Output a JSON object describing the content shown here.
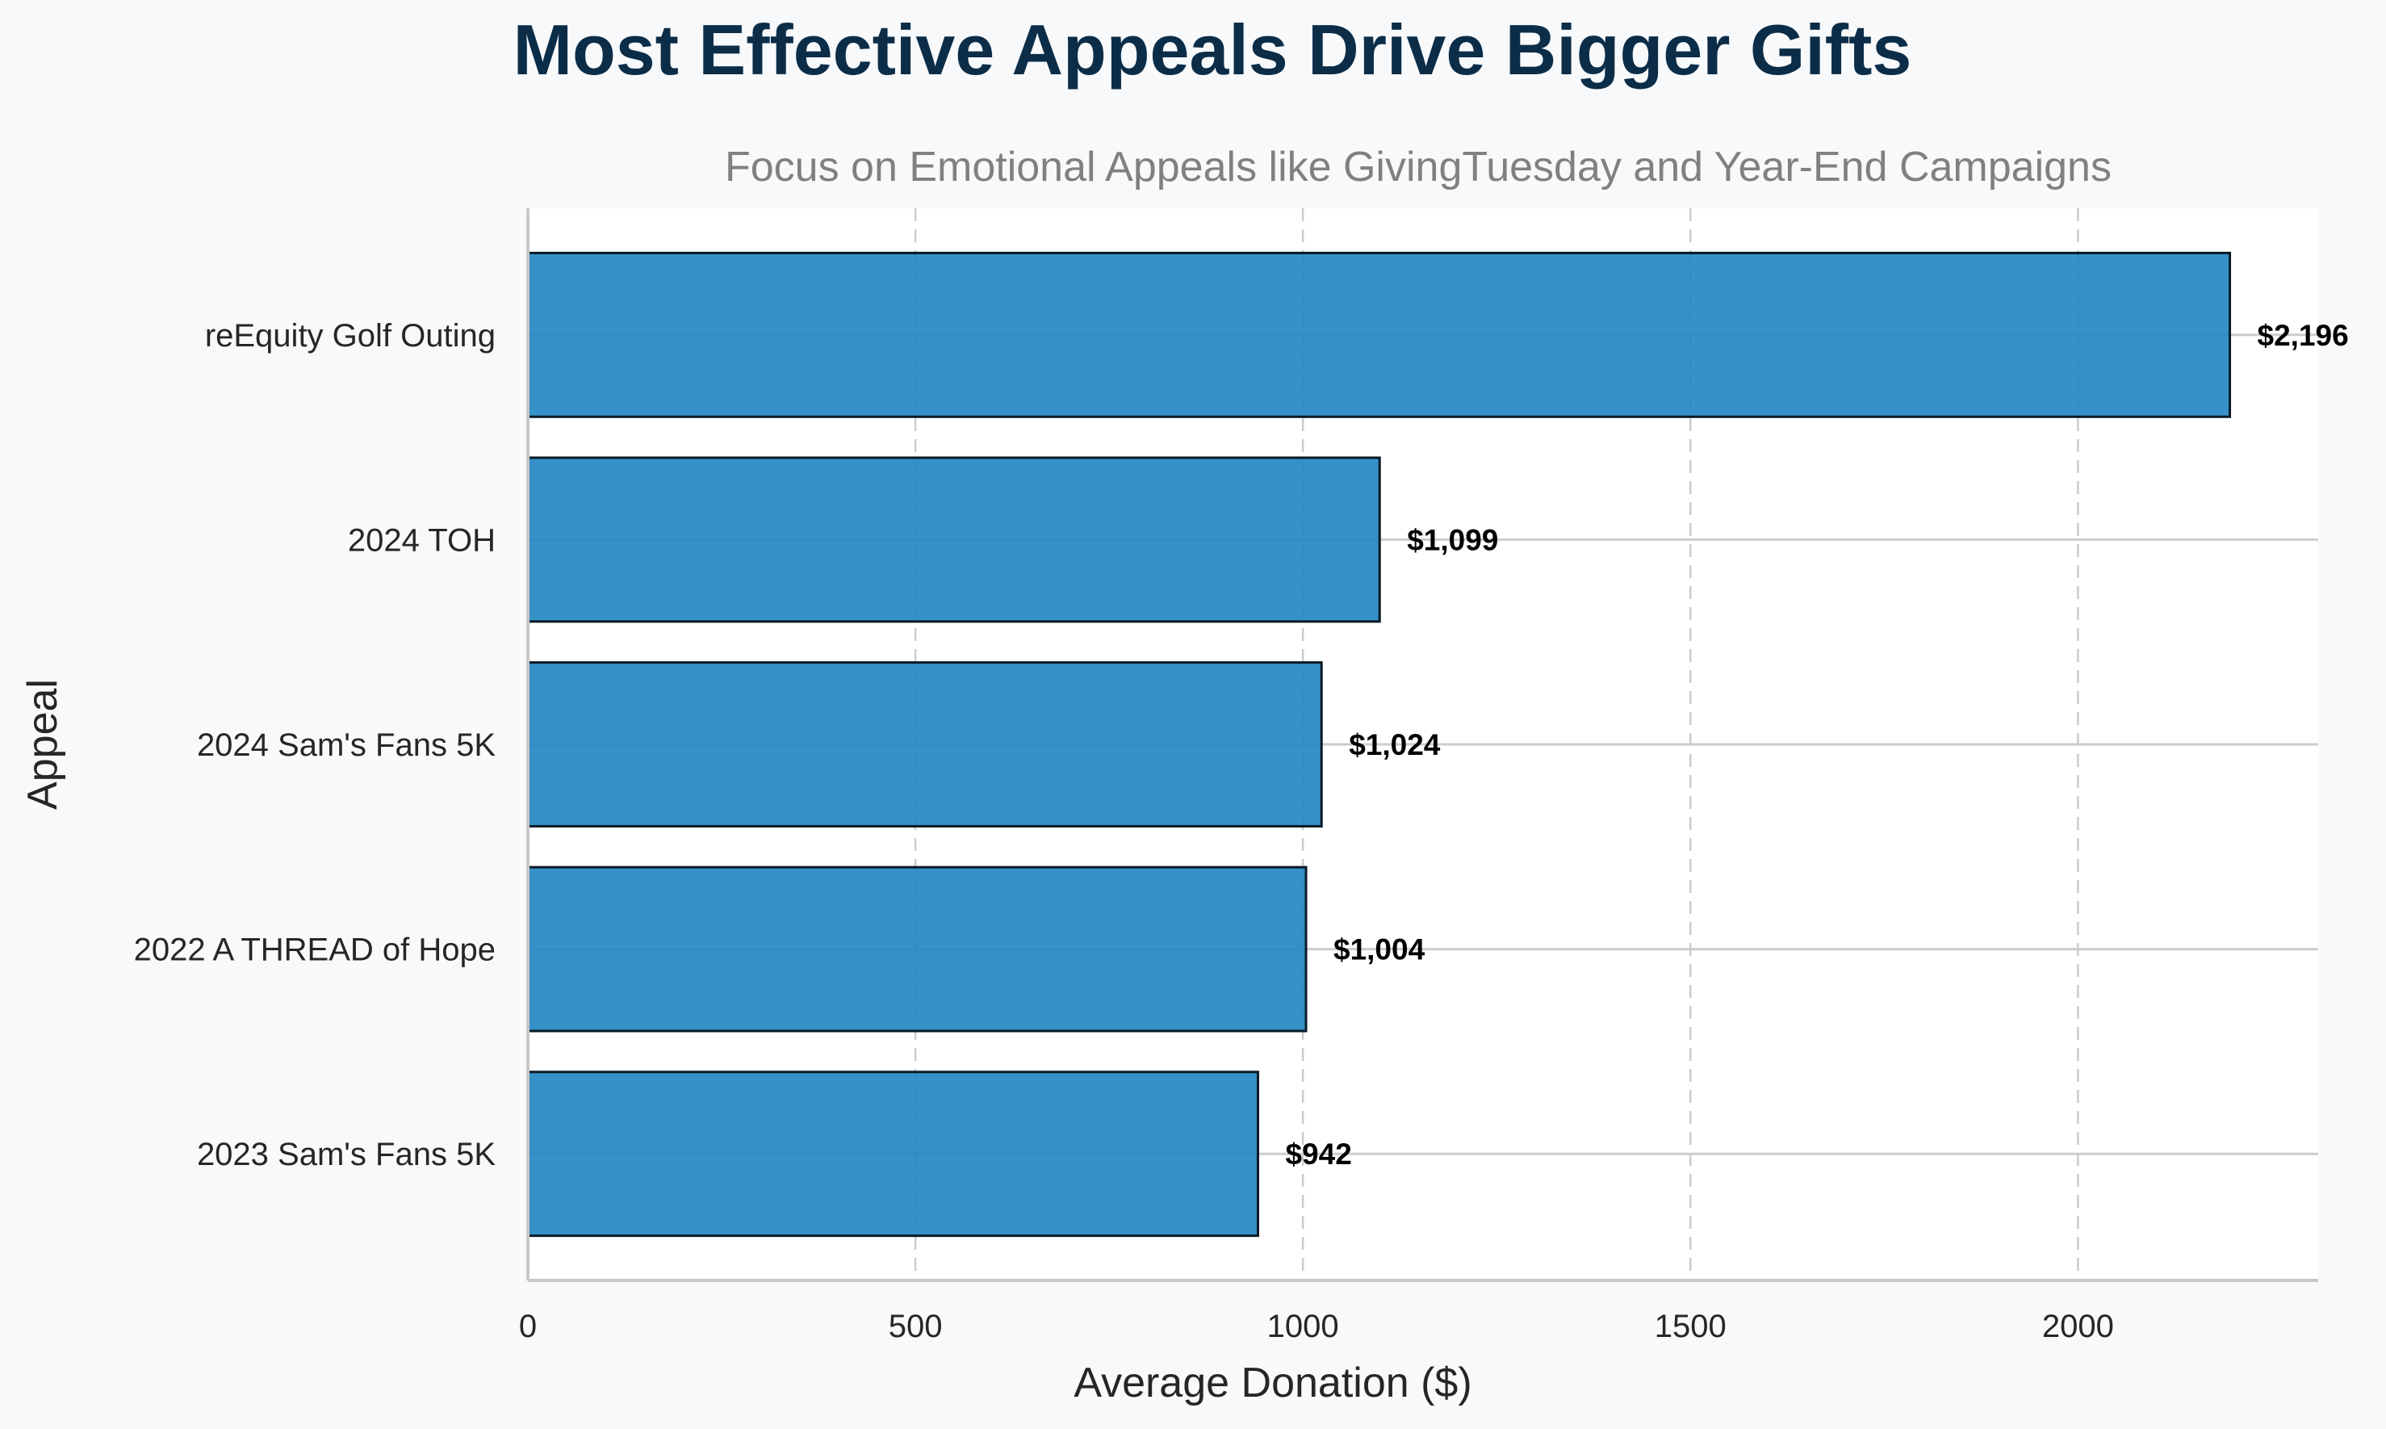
{
  "chart_data": {
    "type": "bar",
    "orientation": "horizontal",
    "title": "Most Effective Appeals Drive Bigger Gifts",
    "subtitle": "Focus on Emotional Appeals like GivingTuesday and Year-End Campaigns",
    "xlabel": "Average Donation ($)",
    "ylabel": "Appeal",
    "categories": [
      "reEquity Golf Outing",
      "2024 TOH",
      "2024 Sam's Fans 5K",
      "2022 A THREAD of Hope",
      "2023 Sam's Fans 5K"
    ],
    "values": [
      2196,
      1099,
      1024,
      1004,
      942
    ],
    "value_labels": [
      "$2,196",
      "$1,099",
      "$1,024",
      "$1,004",
      "$942"
    ],
    "xlim": [
      0,
      2310
    ],
    "xticks": [
      0,
      500,
      1000,
      1500,
      2000
    ],
    "xtick_labels": [
      "0",
      "500",
      "1000",
      "1500",
      "2000"
    ],
    "grid": true,
    "legend": "none",
    "colors": {
      "background": "#f7f9fb",
      "plot_background": "#ffffff",
      "bar_fill": "#1f85c2",
      "bar_edge": "#0a1a26",
      "title": "#0c2d48",
      "subtitle": "#808080",
      "axis_text": "#262626",
      "data_label": "#000000",
      "spine": "#c8c8c8",
      "grid": "#cccccc"
    }
  }
}
